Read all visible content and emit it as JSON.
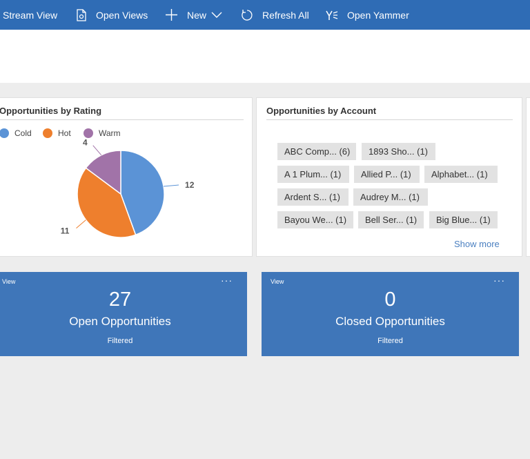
{
  "command_bar": {
    "stream_view": "Stream View",
    "open_views": "Open Views",
    "new": "New",
    "refresh_all": "Refresh All",
    "open_yammer": "Open Yammer"
  },
  "rating_card": {
    "title": "Opportunities by Rating",
    "legend": [
      "Cold",
      "Hot",
      "Warm"
    ],
    "labels": {
      "cold": "12",
      "hot": "11",
      "warm": "4"
    }
  },
  "account_card": {
    "title": "Opportunities by Account",
    "tags": [
      "ABC Comp... (6)",
      "1893 Sho... (1)",
      "A 1 Plum... (1)",
      "Allied P... (1)",
      "Alphabet... (1)",
      "Ardent S... (1)",
      "Audrey M... (1)",
      "Bayou We... (1)",
      "Bell Ser... (1)",
      "Big Blue... (1)"
    ],
    "show_more": "Show more"
  },
  "tiles": [
    {
      "view": "View",
      "more": "···",
      "count": "27",
      "name": "Open Opportunities",
      "filter": "Filtered"
    },
    {
      "view": "View",
      "more": "···",
      "count": "0",
      "name": "Closed Opportunities",
      "filter": "Filtered"
    }
  ],
  "chart_data": {
    "type": "pie",
    "title": "Opportunities by Rating",
    "categories": [
      "Cold",
      "Hot",
      "Warm"
    ],
    "values": [
      12,
      11,
      4
    ],
    "colors": [
      "#5b93d6",
      "#ee7f2d",
      "#a173a8"
    ],
    "legend_position": "top-left"
  }
}
